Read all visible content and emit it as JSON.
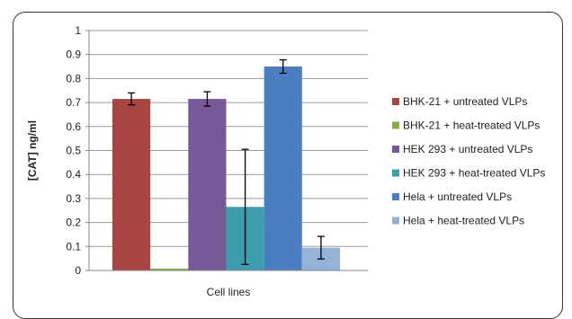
{
  "chart_data": {
    "type": "bar",
    "title": "",
    "xlabel": "Cell lines",
    "ylabel": "[CAT] ng/ml",
    "ylim": [
      0,
      1
    ],
    "yticks": [
      "0",
      "0.1",
      "0.2",
      "0.3",
      "0.4",
      "0.5",
      "0.6",
      "0.7",
      "0.8",
      "0.9",
      "1"
    ],
    "grid": true,
    "legend_position": "right",
    "series": [
      {
        "name": "BHK-21 + untreated VLPs",
        "value": 0.715,
        "error": 0.025,
        "color": "#A84542"
      },
      {
        "name": "BHK-21 + heat-treated VLPs",
        "value": 0.008,
        "error": 0,
        "color": "#86AE48"
      },
      {
        "name": "HEK 293 + untreated VLPs",
        "value": 0.715,
        "error": 0.03,
        "color": "#765996"
      },
      {
        "name": "HEK 293 + heat-treated VLPs",
        "value": 0.265,
        "error": 0.24,
        "color": "#3D9DAF"
      },
      {
        "name": "Hela + untreated VLPs",
        "value": 0.85,
        "error": 0.028,
        "color": "#4A7EC1"
      },
      {
        "name": "Hela + heat-treated VLPs",
        "value": 0.095,
        "error": 0.047,
        "color": "#95B3D7"
      }
    ]
  }
}
